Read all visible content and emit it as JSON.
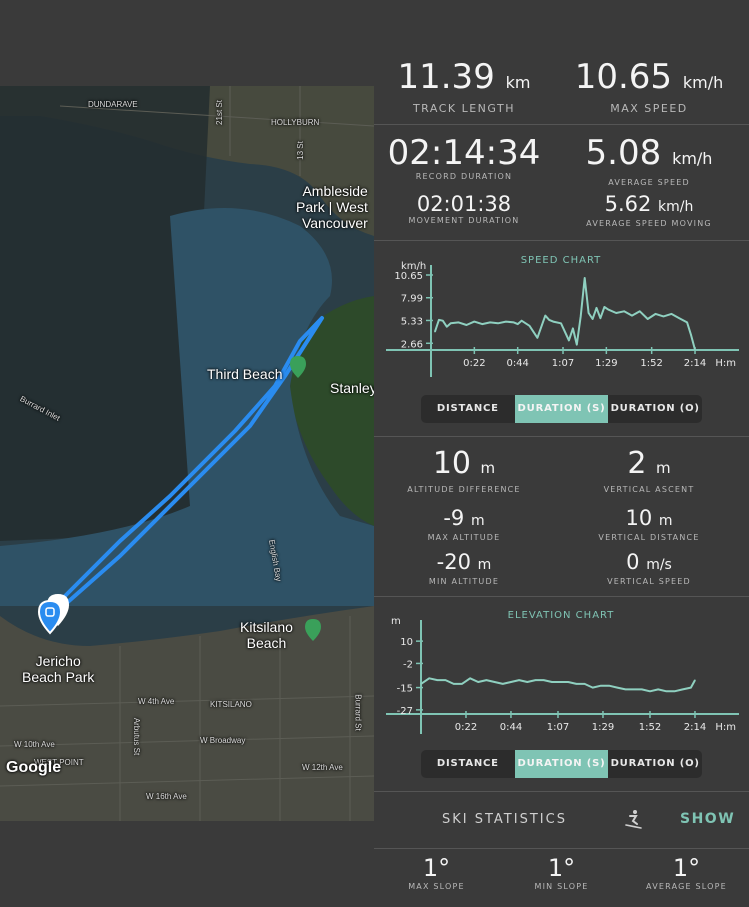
{
  "map": {
    "labels": {
      "dundarave": "DUNDARAVE",
      "hollyburn": "HOLLYBURN",
      "st21": "21st St",
      "st13": "13 St",
      "ambleside": "Ambleside\nPark | West\nVancouver",
      "third_beach": "Third Beach",
      "stanley": "Stanley",
      "burrard_inlet": "Burrard Inlet",
      "english_bay": "English Bay",
      "kitsilano_beach": "Kitsilano\nBeach",
      "jericho": "Jericho\nBeach Park",
      "w4th": "W 4th Ave",
      "kitsilano": "KITSILANO",
      "w10th": "W 10th Ave",
      "w_broadway": "W Broadway",
      "w12th": "W 12th Ave",
      "west_point": "WEST POINT",
      "w16th": "W 16th Ave",
      "arbutus": "Arbutus St",
      "burrard_st": "Burrard St",
      "google": "Google"
    },
    "colors": {
      "track": "#2a8cf0",
      "poi": "#3aa05a"
    }
  },
  "stats": {
    "track_length": {
      "value": "11.39",
      "unit": "km",
      "label": "TRACK LENGTH"
    },
    "max_speed": {
      "value": "10.65",
      "unit": "km/h",
      "label": "MAX SPEED"
    },
    "record_duration": {
      "value": "02:14:34",
      "label": "RECORD DURATION"
    },
    "average_speed": {
      "value": "5.08",
      "unit": "km/h",
      "label": "AVERAGE SPEED"
    },
    "movement_duration": {
      "value": "02:01:38",
      "label": "MOVEMENT DURATION"
    },
    "average_speed_moving": {
      "value": "5.62",
      "unit": "km/h",
      "label": "AVERAGE SPEED MOVING"
    }
  },
  "chart_data": [
    {
      "type": "line",
      "title": "SPEED CHART",
      "ylabel": "km/h",
      "xlabel": "H:m",
      "yticks": [
        "10.65",
        "7.99",
        "5.33",
        "2.66"
      ],
      "ylim": [
        0,
        10.65
      ],
      "xticks": [
        "0:22",
        "0:44",
        "1:07",
        "1:29",
        "1:52",
        "2:14"
      ],
      "x_minutes": [
        2,
        4,
        6,
        8,
        10,
        14,
        18,
        22,
        26,
        30,
        34,
        38,
        42,
        44,
        46,
        50,
        54,
        58,
        60,
        62,
        66,
        70,
        72,
        74,
        76,
        78,
        80,
        82,
        84,
        86,
        88,
        90,
        94,
        98,
        102,
        106,
        110,
        114,
        118,
        122,
        126,
        130,
        132,
        134
      ],
      "values": [
        4.0,
        5.4,
        5.3,
        4.6,
        5.0,
        5.1,
        4.8,
        5.2,
        4.9,
        5.1,
        5.0,
        5.2,
        5.1,
        4.9,
        5.3,
        4.7,
        3.3,
        5.9,
        5.4,
        5.2,
        5.0,
        3.0,
        4.4,
        2.5,
        5.8,
        10.3,
        6.2,
        5.5,
        6.8,
        5.6,
        6.9,
        6.6,
        6.2,
        6.4,
        5.9,
        6.4,
        5.5,
        6.1,
        5.8,
        6.1,
        5.6,
        5.1,
        3.6,
        1.9
      ],
      "colors": {
        "line": "#8fd0c0",
        "axis": "#7fc4b4"
      }
    },
    {
      "type": "line",
      "title": "ELEVATION CHART",
      "ylabel": "m",
      "xlabel": "H:m",
      "yticks": [
        "10",
        "-2",
        "-15",
        "-27"
      ],
      "ylim": [
        -40,
        16
      ],
      "xticks": [
        "0:22",
        "0:44",
        "1:07",
        "1:29",
        "1:52",
        "2:14"
      ],
      "x_minutes": [
        0,
        4,
        8,
        12,
        16,
        20,
        24,
        28,
        32,
        36,
        40,
        44,
        48,
        52,
        56,
        60,
        64,
        68,
        72,
        76,
        80,
        84,
        88,
        92,
        96,
        100,
        104,
        108,
        112,
        116,
        120,
        124,
        128,
        132,
        134
      ],
      "values": [
        -13,
        -10,
        -11,
        -11,
        -13,
        -13,
        -10,
        -12,
        -11,
        -12,
        -13,
        -12,
        -11,
        -12,
        -11,
        -11,
        -12,
        -12,
        -12,
        -13,
        -13,
        -15,
        -14,
        -14,
        -15,
        -16,
        -16,
        -16,
        -17,
        -16,
        -17,
        -17,
        -16,
        -15,
        -11
      ],
      "colors": {
        "line": "#8fd0c0",
        "axis": "#7fc4b4"
      }
    }
  ],
  "speed_toggle": {
    "distance": "DISTANCE",
    "duration_s": "DURATION (S)",
    "duration_o": "DURATION (O)"
  },
  "altitude": {
    "altitude_difference": {
      "value": "10",
      "unit": "m",
      "label": "ALTITUDE DIFFERENCE"
    },
    "vertical_ascent": {
      "value": "2",
      "unit": "m",
      "label": "VERTICAL ASCENT"
    },
    "max_altitude": {
      "value": "-9",
      "unit": "m",
      "label": "MAX ALTITUDE"
    },
    "vertical_distance": {
      "value": "10",
      "unit": "m",
      "label": "VERTICAL DISTANCE"
    },
    "min_altitude": {
      "value": "-20",
      "unit": "m",
      "label": "MIN ALTITUDE"
    },
    "vertical_speed": {
      "value": "0",
      "unit": "m/s",
      "label": "VERTICAL SPEED"
    }
  },
  "elevation_toggle": {
    "distance": "DISTANCE",
    "duration_s": "DURATION (S)",
    "duration_o": "DURATION (O)"
  },
  "ski": {
    "title": "SKI STATISTICS",
    "icon": "skier-icon",
    "show": "SHOW"
  },
  "slopes": {
    "max_slope": {
      "value": "1°",
      "label": "MAX SLOPE"
    },
    "min_slope": {
      "value": "1°",
      "label": "MIN SLOPE"
    },
    "average_slope": {
      "value": "1°",
      "label": "AVERAGE SLOPE"
    }
  }
}
